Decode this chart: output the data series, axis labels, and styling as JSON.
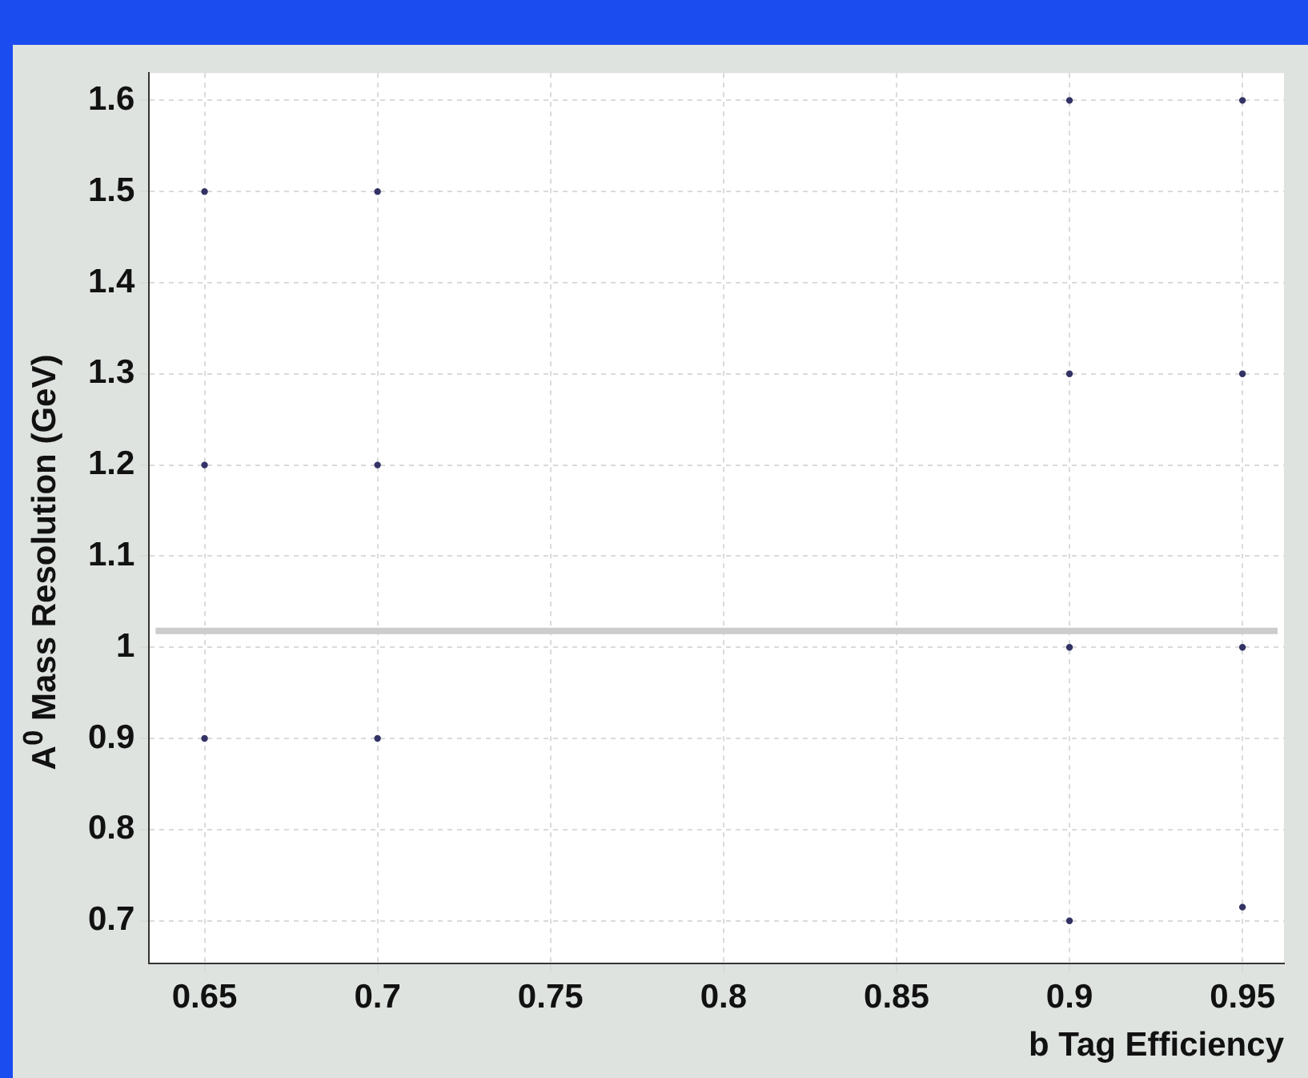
{
  "chart_data": {
    "type": "scatter",
    "xlabel": "b Tag Efficiency",
    "ylabel": "A$^{0}$ Mass Resolution (GeV)",
    "x": [
      0.65,
      0.65,
      0.65,
      0.7,
      0.7,
      0.7,
      0.9,
      0.9,
      0.9,
      0.9,
      0.95,
      0.95,
      0.95,
      0.95
    ],
    "series": [
      {
        "color": "#333366",
        "values": [
          1.5,
          1.2,
          0.9,
          1.5,
          1.2,
          0.9,
          1.6,
          1.3,
          1.0,
          0.7,
          1.6,
          1.3,
          1.0,
          0.715
        ]
      }
    ],
    "xlim": [
      0.634,
      0.962
    ],
    "xticks": [
      0.65,
      0.7,
      0.75,
      0.8,
      0.85,
      0.9,
      0.95
    ],
    "ylim": [
      0.653,
      1.63
    ],
    "yticks": [
      0.7,
      0.8,
      0.9,
      1,
      1.1,
      1.2,
      1.3,
      1.4,
      1.5,
      1.6
    ],
    "ref_lines": [
      {
        "axis": "y",
        "value": 1.018,
        "color": "#cccccc"
      }
    ],
    "grid": true,
    "marker": "circle",
    "legend": false
  }
}
